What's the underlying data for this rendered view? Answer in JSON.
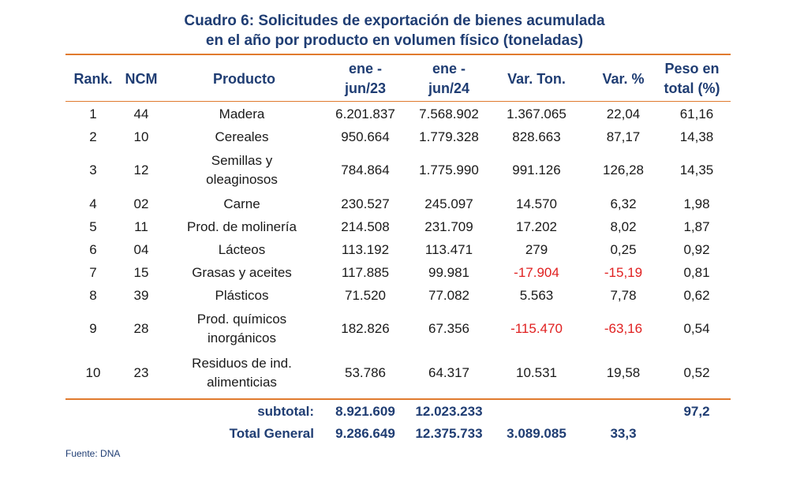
{
  "title": {
    "line1": "Cuadro 6: Solicitudes de exportación de bienes acumulada",
    "line2": "en el año por producto en volumen físico (toneladas)"
  },
  "headers": {
    "rank": "Rank.",
    "ncm": "NCM",
    "producto": "Producto",
    "ene23_l1": "ene -",
    "ene23_l2": "jun/23",
    "ene24_l1": "ene -",
    "ene24_l2": "jun/24",
    "var_ton": "Var. Ton.",
    "var_pct": "Var. %",
    "peso_l1": "Peso en",
    "peso_l2": "total (%)"
  },
  "rows": [
    {
      "rank": "1",
      "ncm": "44",
      "producto_l1": "Madera",
      "producto_l2": "",
      "ene23": "6.201.837",
      "ene24": "7.568.902",
      "var_ton": "1.367.065",
      "var_pct": "22,04",
      "peso": "61,16"
    },
    {
      "rank": "2",
      "ncm": "10",
      "producto_l1": "Cereales",
      "producto_l2": "",
      "ene23": "950.664",
      "ene24": "1.779.328",
      "var_ton": "828.663",
      "var_pct": "87,17",
      "peso": "14,38"
    },
    {
      "rank": "3",
      "ncm": "12",
      "producto_l1": "Semillas y",
      "producto_l2": "oleaginosos",
      "ene23": "784.864",
      "ene24": "1.775.990",
      "var_ton": "991.126",
      "var_pct": "126,28",
      "peso": "14,35"
    },
    {
      "rank": "4",
      "ncm": "02",
      "producto_l1": "Carne",
      "producto_l2": "",
      "ene23": "230.527",
      "ene24": "245.097",
      "var_ton": "14.570",
      "var_pct": "6,32",
      "peso": "1,98"
    },
    {
      "rank": "5",
      "ncm": "11",
      "producto_l1": "Prod. de molinería",
      "producto_l2": "",
      "ene23": "214.508",
      "ene24": "231.709",
      "var_ton": "17.202",
      "var_pct": "8,02",
      "peso": "1,87"
    },
    {
      "rank": "6",
      "ncm": "04",
      "producto_l1": "Lácteos",
      "producto_l2": "",
      "ene23": "113.192",
      "ene24": "113.471",
      "var_ton": "279",
      "var_pct": "0,25",
      "peso": "0,92"
    },
    {
      "rank": "7",
      "ncm": "15",
      "producto_l1": "Grasas y aceites",
      "producto_l2": "",
      "ene23": "117.885",
      "ene24": "99.981",
      "var_ton": "-17.904",
      "var_pct": "-15,19",
      "peso": "0,81"
    },
    {
      "rank": "8",
      "ncm": "39",
      "producto_l1": "Plásticos",
      "producto_l2": "",
      "ene23": "71.520",
      "ene24": "77.082",
      "var_ton": "5.563",
      "var_pct": "7,78",
      "peso": "0,62"
    },
    {
      "rank": "9",
      "ncm": "28",
      "producto_l1": "Prod. químicos",
      "producto_l2": "inorgánicos",
      "ene23": "182.826",
      "ene24": "67.356",
      "var_ton": "-115.470",
      "var_pct": "-63,16",
      "peso": "0,54"
    },
    {
      "rank": "10",
      "ncm": "23",
      "producto_l1": "Residuos de ind.",
      "producto_l2": "alimenticias",
      "ene23": "53.786",
      "ene24": "64.317",
      "var_ton": "10.531",
      "var_pct": "19,58",
      "peso": "0,52"
    }
  ],
  "subtotal": {
    "label": "subtotal:",
    "ene23": "8.921.609",
    "ene24": "12.023.233",
    "var_ton": "",
    "var_pct": "",
    "peso": "97,2"
  },
  "total": {
    "label": "Total General",
    "ene23": "9.286.649",
    "ene24": "12.375.733",
    "var_ton": "3.089.085",
    "var_pct": "33,3",
    "peso": ""
  },
  "source": "Fuente: DNA",
  "colors": {
    "title": "#1f3d73",
    "rule": "#e07a2e",
    "negative": "#e02020"
  }
}
